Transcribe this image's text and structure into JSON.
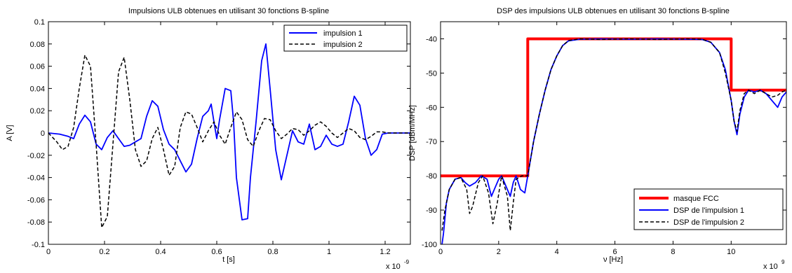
{
  "chart_data": [
    {
      "type": "line",
      "title": "Impulsions ULB obtenues en utilisant 30 fonctions B-spline",
      "xlabel": "t [s]",
      "ylabel": "A [V]",
      "x_exponent": "x 10",
      "x_exponent_power": "-9",
      "xlim": [
        0,
        1.29
      ],
      "ylim": [
        -0.1,
        0.1
      ],
      "xticks": [
        0,
        0.2,
        0.4,
        0.6,
        0.8,
        1,
        1.2
      ],
      "xtick_labels": [
        "0",
        "0.2",
        "0.4",
        "0.6",
        "0.8",
        "1",
        "1.2"
      ],
      "yticks": [
        -0.1,
        -0.08,
        -0.06,
        -0.04,
        -0.02,
        0,
        0.02,
        0.04,
        0.06,
        0.08,
        0.1
      ],
      "ytick_labels": [
        "-0.1",
        "-0.08",
        "-0.06",
        "-0.04",
        "-0.02",
        "0",
        "0.02",
        "0.04",
        "0.06",
        "0.08",
        "0.1"
      ],
      "legend_position": "top-right",
      "series": [
        {
          "name": "impulsion 1",
          "color": "#0000ff",
          "style": "solid",
          "points": [
            [
              0,
              0
            ],
            [
              0.04,
              -0.001
            ],
            [
              0.07,
              -0.003
            ],
            [
              0.09,
              -0.005
            ],
            [
              0.11,
              0.008
            ],
            [
              0.13,
              0.016
            ],
            [
              0.15,
              0.01
            ],
            [
              0.17,
              -0.01
            ],
            [
              0.19,
              -0.015
            ],
            [
              0.21,
              -0.004
            ],
            [
              0.23,
              0.002
            ],
            [
              0.25,
              -0.005
            ],
            [
              0.27,
              -0.012
            ],
            [
              0.29,
              -0.011
            ],
            [
              0.31,
              -0.008
            ],
            [
              0.33,
              -0.005
            ],
            [
              0.35,
              0.015
            ],
            [
              0.37,
              0.029
            ],
            [
              0.39,
              0.024
            ],
            [
              0.41,
              0.003
            ],
            [
              0.43,
              -0.01
            ],
            [
              0.45,
              -0.015
            ],
            [
              0.47,
              -0.025
            ],
            [
              0.49,
              -0.035
            ],
            [
              0.51,
              -0.028
            ],
            [
              0.53,
              -0.005
            ],
            [
              0.55,
              0.015
            ],
            [
              0.57,
              0.02
            ],
            [
              0.58,
              0.026
            ],
            [
              0.59,
              0.01
            ],
            [
              0.6,
              -0.005
            ],
            [
              0.61,
              0.012
            ],
            [
              0.63,
              0.04
            ],
            [
              0.65,
              0.038
            ],
            [
              0.66,
              0.01
            ],
            [
              0.67,
              -0.04
            ],
            [
              0.69,
              -0.078
            ],
            [
              0.71,
              -0.077
            ],
            [
              0.72,
              -0.04
            ],
            [
              0.74,
              0.01
            ],
            [
              0.76,
              0.065
            ],
            [
              0.775,
              0.08
            ],
            [
              0.79,
              0.04
            ],
            [
              0.81,
              -0.015
            ],
            [
              0.83,
              -0.042
            ],
            [
              0.85,
              -0.02
            ],
            [
              0.87,
              0.002
            ],
            [
              0.89,
              -0.008
            ],
            [
              0.91,
              -0.01
            ],
            [
              0.93,
              0.008
            ],
            [
              0.95,
              -0.015
            ],
            [
              0.97,
              -0.012
            ],
            [
              0.99,
              -0.002
            ],
            [
              1.01,
              -0.01
            ],
            [
              1.03,
              -0.012
            ],
            [
              1.05,
              -0.01
            ],
            [
              1.07,
              0.01
            ],
            [
              1.09,
              0.033
            ],
            [
              1.11,
              0.025
            ],
            [
              1.13,
              -0.005
            ],
            [
              1.15,
              -0.02
            ],
            [
              1.17,
              -0.015
            ],
            [
              1.19,
              -0.001
            ],
            [
              1.21,
              0
            ],
            [
              1.25,
              0
            ],
            [
              1.29,
              0
            ]
          ]
        },
        {
          "name": "impulsion 2",
          "color": "#000000",
          "style": "dashed",
          "points": [
            [
              0,
              0
            ],
            [
              0.03,
              -0.008
            ],
            [
              0.05,
              -0.015
            ],
            [
              0.07,
              -0.012
            ],
            [
              0.09,
              0.005
            ],
            [
              0.11,
              0.04
            ],
            [
              0.13,
              0.07
            ],
            [
              0.15,
              0.06
            ],
            [
              0.17,
              -0.01
            ],
            [
              0.19,
              -0.085
            ],
            [
              0.21,
              -0.075
            ],
            [
              0.23,
              -0.01
            ],
            [
              0.25,
              0.055
            ],
            [
              0.27,
              0.068
            ],
            [
              0.29,
              0.03
            ],
            [
              0.31,
              -0.015
            ],
            [
              0.33,
              -0.03
            ],
            [
              0.35,
              -0.025
            ],
            [
              0.37,
              -0.005
            ],
            [
              0.39,
              0.005
            ],
            [
              0.41,
              -0.015
            ],
            [
              0.43,
              -0.038
            ],
            [
              0.45,
              -0.03
            ],
            [
              0.47,
              0.005
            ],
            [
              0.49,
              0.019
            ],
            [
              0.51,
              0.017
            ],
            [
              0.53,
              0.005
            ],
            [
              0.55,
              -0.008
            ],
            [
              0.57,
              0.002
            ],
            [
              0.59,
              0.01
            ],
            [
              0.61,
              -0.002
            ],
            [
              0.63,
              -0.01
            ],
            [
              0.65,
              0.005
            ],
            [
              0.67,
              0.019
            ],
            [
              0.69,
              0.012
            ],
            [
              0.71,
              -0.006
            ],
            [
              0.73,
              -0.012
            ],
            [
              0.75,
              0.002
            ],
            [
              0.77,
              0.013
            ],
            [
              0.79,
              0.012
            ],
            [
              0.81,
              0.002
            ],
            [
              0.83,
              -0.005
            ],
            [
              0.85,
              -0.001
            ],
            [
              0.87,
              0.004
            ],
            [
              0.89,
              0.003
            ],
            [
              0.91,
              -0.002
            ],
            [
              0.93,
              0.002
            ],
            [
              0.95,
              0.007
            ],
            [
              0.97,
              0.01
            ],
            [
              0.99,
              0.006
            ],
            [
              1.01,
              0
            ],
            [
              1.03,
              -0.004
            ],
            [
              1.05,
              0
            ],
            [
              1.07,
              0.004
            ],
            [
              1.09,
              0.002
            ],
            [
              1.11,
              -0.004
            ],
            [
              1.13,
              -0.006
            ],
            [
              1.15,
              -0.003
            ],
            [
              1.17,
              0.001
            ],
            [
              1.19,
              0.001
            ],
            [
              1.21,
              0
            ],
            [
              1.29,
              0
            ]
          ]
        }
      ]
    },
    {
      "type": "line",
      "title": "DSP des impulsions ULB obtenues en utilisant 30 fonctions B-spline",
      "xlabel": "ν [Hz]",
      "ylabel": "DSP [dBm/MHz]",
      "x_exponent": "x 10",
      "x_exponent_power": "9",
      "xlim": [
        0,
        11.9
      ],
      "ylim": [
        -100,
        -35
      ],
      "xticks": [
        0,
        2,
        4,
        6,
        8,
        10
      ],
      "xtick_labels": [
        "0",
        "2",
        "4",
        "6",
        "8",
        "10"
      ],
      "yticks": [
        -100,
        -90,
        -80,
        -70,
        -60,
        -50,
        -40
      ],
      "ytick_labels": [
        "-100",
        "-90",
        "-80",
        "-70",
        "-60",
        "-50",
        "-40"
      ],
      "legend_position": "bottom-right",
      "series": [
        {
          "name": "masque FCC",
          "color": "#ff0000",
          "style": "solid-thick",
          "points": [
            [
              0,
              -80
            ],
            [
              3,
              -80
            ],
            [
              3,
              -40
            ],
            [
              10,
              -40
            ],
            [
              10,
              -55
            ],
            [
              11.9,
              -55
            ]
          ]
        },
        {
          "name": "DSP de l'impulsion 1",
          "color": "#0000ff",
          "style": "solid",
          "points": [
            [
              0.05,
              -100
            ],
            [
              0.1,
              -97
            ],
            [
              0.2,
              -88
            ],
            [
              0.3,
              -84
            ],
            [
              0.5,
              -81
            ],
            [
              0.7,
              -80.5
            ],
            [
              0.85,
              -82
            ],
            [
              1.0,
              -83
            ],
            [
              1.2,
              -82
            ],
            [
              1.4,
              -80
            ],
            [
              1.6,
              -81
            ],
            [
              1.75,
              -86
            ],
            [
              1.85,
              -84
            ],
            [
              2.0,
              -81
            ],
            [
              2.1,
              -80
            ],
            [
              2.2,
              -82
            ],
            [
              2.4,
              -86
            ],
            [
              2.5,
              -82
            ],
            [
              2.6,
              -80
            ],
            [
              2.75,
              -84
            ],
            [
              2.9,
              -85
            ],
            [
              3.0,
              -80
            ],
            [
              3.2,
              -70
            ],
            [
              3.4,
              -62
            ],
            [
              3.6,
              -55
            ],
            [
              3.8,
              -49
            ],
            [
              4.0,
              -45
            ],
            [
              4.2,
              -42
            ],
            [
              4.4,
              -40.6
            ],
            [
              4.8,
              -40.1
            ],
            [
              5.5,
              -40
            ],
            [
              6.5,
              -40.1
            ],
            [
              7.5,
              -40
            ],
            [
              8.5,
              -40.1
            ],
            [
              9.0,
              -40.2
            ],
            [
              9.3,
              -41
            ],
            [
              9.6,
              -44
            ],
            [
              9.8,
              -49
            ],
            [
              10.0,
              -58
            ],
            [
              10.1,
              -64
            ],
            [
              10.2,
              -68
            ],
            [
              10.3,
              -62
            ],
            [
              10.45,
              -57
            ],
            [
              10.6,
              -55
            ],
            [
              10.8,
              -55.5
            ],
            [
              11.0,
              -55
            ],
            [
              11.2,
              -56
            ],
            [
              11.4,
              -58
            ],
            [
              11.6,
              -60
            ],
            [
              11.75,
              -57
            ],
            [
              11.9,
              -55.5
            ]
          ]
        },
        {
          "name": "DSP de l'impulsion 2",
          "color": "#000000",
          "style": "dashed",
          "points": [
            [
              0.05,
              -96
            ],
            [
              0.15,
              -90
            ],
            [
              0.3,
              -84
            ],
            [
              0.5,
              -81
            ],
            [
              0.7,
              -80.5
            ],
            [
              0.9,
              -84
            ],
            [
              1.0,
              -91
            ],
            [
              1.1,
              -89
            ],
            [
              1.3,
              -82
            ],
            [
              1.45,
              -80
            ],
            [
              1.65,
              -85
            ],
            [
              1.8,
              -94
            ],
            [
              1.95,
              -88
            ],
            [
              2.1,
              -80
            ],
            [
              2.3,
              -86
            ],
            [
              2.4,
              -96
            ],
            [
              2.5,
              -88
            ],
            [
              2.6,
              -81
            ],
            [
              2.8,
              -80
            ],
            [
              3.0,
              -80
            ],
            [
              3.2,
              -70
            ],
            [
              3.4,
              -62
            ],
            [
              3.6,
              -55
            ],
            [
              3.8,
              -49
            ],
            [
              4.0,
              -45
            ],
            [
              4.2,
              -42
            ],
            [
              4.4,
              -40.5
            ],
            [
              4.8,
              -40
            ],
            [
              5.5,
              -40.2
            ],
            [
              6.5,
              -40
            ],
            [
              7.5,
              -40.2
            ],
            [
              8.5,
              -40
            ],
            [
              9.0,
              -40.1
            ],
            [
              9.3,
              -41
            ],
            [
              9.6,
              -44
            ],
            [
              9.8,
              -50
            ],
            [
              10.0,
              -58
            ],
            [
              10.1,
              -64
            ],
            [
              10.2,
              -67
            ],
            [
              10.3,
              -61
            ],
            [
              10.45,
              -56
            ],
            [
              10.6,
              -55
            ],
            [
              10.8,
              -56
            ],
            [
              11.0,
              -55
            ],
            [
              11.2,
              -56
            ],
            [
              11.4,
              -57
            ],
            [
              11.6,
              -56.5
            ],
            [
              11.75,
              -55.5
            ],
            [
              11.9,
              -55
            ]
          ]
        }
      ]
    }
  ]
}
